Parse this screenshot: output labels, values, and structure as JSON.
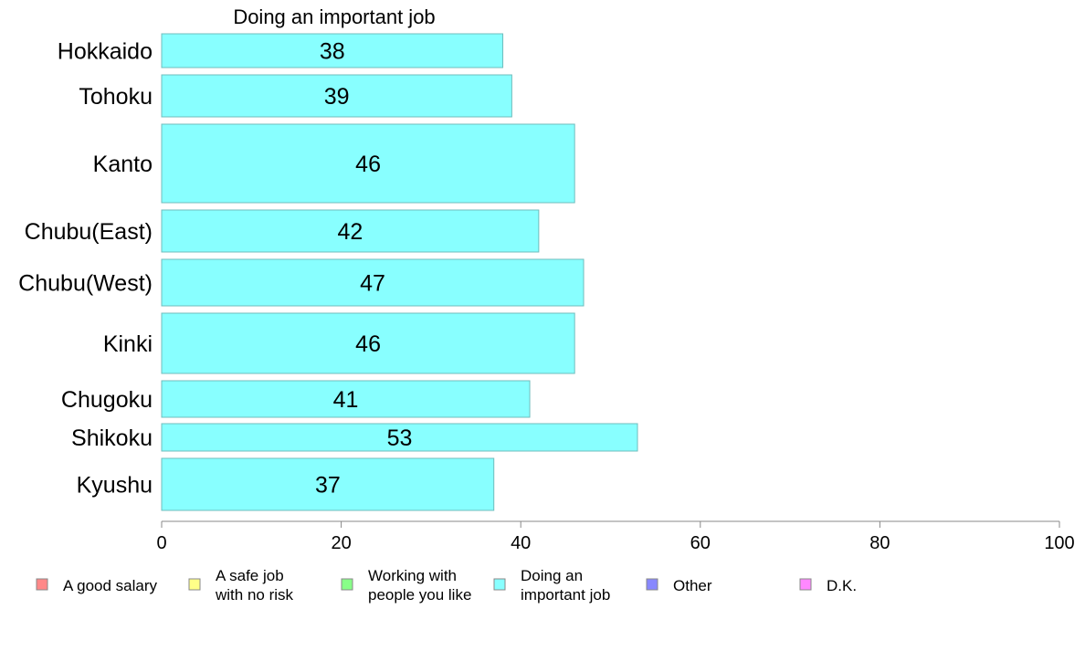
{
  "chart_data": {
    "type": "bar",
    "orientation": "horizontal",
    "title": "Doing an important job",
    "categories": [
      "Hokkaido",
      "Tohoku",
      "Kanto",
      "Chubu(East)",
      "Chubu(West)",
      "Kinki",
      "Chugoku",
      "Shikoku",
      "Kyushu"
    ],
    "values": [
      38,
      39,
      46,
      42,
      47,
      46,
      41,
      53,
      37
    ],
    "value_labels": [
      "38",
      "39",
      "46",
      "42",
      "47",
      "46",
      "41",
      "53",
      "37"
    ],
    "bar_color": "#88ffff",
    "bar_border_color": "#6fbcbc",
    "xlim": [
      0,
      100
    ],
    "xticks": [
      0,
      20,
      40,
      60,
      80,
      100
    ],
    "xtick_labels": [
      "0",
      "20",
      "40",
      "60",
      "80",
      "100"
    ],
    "grid": false,
    "legend_position": "bottom",
    "legend": [
      {
        "lines": [
          "A good salary"
        ],
        "color": "#ff8888"
      },
      {
        "lines": [
          "A safe job",
          "with no risk"
        ],
        "color": "#ffff88"
      },
      {
        "lines": [
          "Working with",
          "people you like"
        ],
        "color": "#88ff88"
      },
      {
        "lines": [
          "Doing an",
          "important job"
        ],
        "color": "#88ffff"
      },
      {
        "lines": [
          "Other"
        ],
        "color": "#8888ff"
      },
      {
        "lines": [
          "D.K."
        ],
        "color": "#ff88ff"
      }
    ]
  }
}
